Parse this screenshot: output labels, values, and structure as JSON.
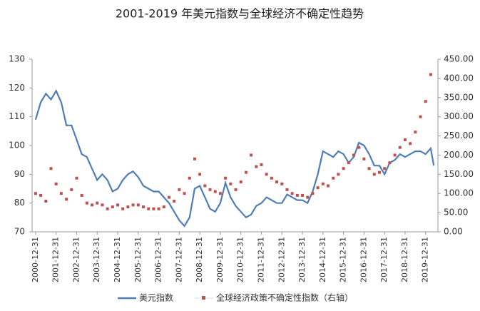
{
  "chart_data": {
    "type": "line",
    "title": "2001-2019 年美元指数与全球经济不确定性趋势",
    "xlim": [
      2000.83,
      2020.6
    ],
    "xticks": [
      {
        "value": 2001,
        "label": "2000-12-31"
      },
      {
        "value": 2002,
        "label": "2001-12-31"
      },
      {
        "value": 2003,
        "label": "2002-12-31"
      },
      {
        "value": 2004,
        "label": "2003-12-31"
      },
      {
        "value": 2005,
        "label": "2004-12-31"
      },
      {
        "value": 2006,
        "label": "2005-12-31"
      },
      {
        "value": 2007,
        "label": "2006-12-31"
      },
      {
        "value": 2008,
        "label": "2007-12-31"
      },
      {
        "value": 2009,
        "label": "2008-12-31"
      },
      {
        "value": 2010,
        "label": "2009-12-31"
      },
      {
        "value": 2011,
        "label": "2010-12-31"
      },
      {
        "value": 2012,
        "label": "2011-12-31"
      },
      {
        "value": 2013,
        "label": "2012-12-31"
      },
      {
        "value": 2014,
        "label": "2013-12-31"
      },
      {
        "value": 2015,
        "label": "2014-12-31"
      },
      {
        "value": 2016,
        "label": "2015-12-31"
      },
      {
        "value": 2017,
        "label": "2016-12-31"
      },
      {
        "value": 2018,
        "label": "2017-12-31"
      },
      {
        "value": 2019,
        "label": "2018-12-31"
      },
      {
        "value": 2020,
        "label": "2019-12-31"
      }
    ],
    "ylim": [
      70,
      130
    ],
    "yticks": [
      70,
      80,
      90,
      100,
      110,
      120,
      130
    ],
    "y2lim": [
      0,
      450
    ],
    "y2ticks": [
      {
        "value": 0,
        "label": "0.00"
      },
      {
        "value": 50,
        "label": "50.00"
      },
      {
        "value": 100,
        "label": "100.00"
      },
      {
        "value": 150,
        "label": "150.00"
      },
      {
        "value": 200,
        "label": "200.00"
      },
      {
        "value": 250,
        "label": "250.00"
      },
      {
        "value": 300,
        "label": "300.00"
      },
      {
        "value": 350,
        "label": "350.00"
      },
      {
        "value": 400,
        "label": "400.00"
      },
      {
        "value": 450,
        "label": "450.00"
      }
    ],
    "series": [
      {
        "name": "美元指数",
        "type": "line",
        "color": "#4f7db8",
        "x": [
          2001,
          2001.25,
          2001.5,
          2001.75,
          2002,
          2002.25,
          2002.5,
          2002.75,
          2003,
          2003.25,
          2003.5,
          2003.75,
          2004,
          2004.25,
          2004.5,
          2004.75,
          2005,
          2005.25,
          2005.5,
          2005.75,
          2006,
          2006.25,
          2006.5,
          2006.75,
          2007,
          2007.25,
          2007.5,
          2007.75,
          2008,
          2008.25,
          2008.5,
          2008.75,
          2009,
          2009.25,
          2009.5,
          2009.75,
          2010,
          2010.25,
          2010.5,
          2010.75,
          2011,
          2011.25,
          2011.5,
          2011.75,
          2012,
          2012.25,
          2012.5,
          2012.75,
          2013,
          2013.25,
          2013.5,
          2013.75,
          2014,
          2014.25,
          2014.5,
          2014.75,
          2015,
          2015.25,
          2015.5,
          2015.75,
          2016,
          2016.25,
          2016.5,
          2016.75,
          2017,
          2017.25,
          2017.5,
          2017.75,
          2018,
          2018.25,
          2018.5,
          2018.75,
          2019,
          2019.25,
          2019.5,
          2019.75,
          2020,
          2020.25,
          2020.4
        ],
        "values": [
          109,
          115,
          118,
          116,
          119,
          115,
          107,
          107,
          102,
          97,
          96,
          92,
          88,
          90,
          88,
          84,
          85,
          88,
          90,
          91,
          89,
          86,
          85,
          84,
          84,
          82,
          80,
          77,
          74,
          72,
          75,
          85,
          86,
          82,
          78,
          77,
          80,
          87,
          82,
          79,
          77,
          75,
          76,
          79,
          80,
          82,
          81,
          80,
          80,
          83,
          82,
          81,
          81,
          80,
          84,
          90,
          98,
          97,
          96,
          98,
          97,
          94,
          96,
          101,
          100,
          97,
          93,
          93,
          90,
          94,
          95,
          97,
          96,
          97,
          98,
          98,
          97,
          99,
          93
        ]
      },
      {
        "name": "全球经济政策不确定性指数（右轴）",
        "type": "scatter",
        "axis": "y2",
        "color": "#c0504d",
        "x": [
          2001,
          2001.25,
          2001.5,
          2001.75,
          2002,
          2002.25,
          2002.5,
          2002.75,
          2003,
          2003.25,
          2003.5,
          2003.75,
          2004,
          2004.25,
          2004.5,
          2004.75,
          2005,
          2005.25,
          2005.5,
          2005.75,
          2006,
          2006.25,
          2006.5,
          2006.75,
          2007,
          2007.25,
          2007.5,
          2007.75,
          2008,
          2008.25,
          2008.5,
          2008.75,
          2009,
          2009.25,
          2009.5,
          2009.75,
          2010,
          2010.25,
          2010.5,
          2010.75,
          2011,
          2011.25,
          2011.5,
          2011.75,
          2012,
          2012.25,
          2012.5,
          2012.75,
          2013,
          2013.25,
          2013.5,
          2013.75,
          2014,
          2014.25,
          2014.5,
          2014.75,
          2015,
          2015.25,
          2015.5,
          2015.75,
          2016,
          2016.25,
          2016.5,
          2016.75,
          2017,
          2017.25,
          2017.5,
          2017.75,
          2018,
          2018.25,
          2018.5,
          2018.75,
          2019,
          2019.25,
          2019.5,
          2019.75,
          2020,
          2020.25
        ],
        "values": [
          100,
          95,
          80,
          165,
          125,
          100,
          85,
          110,
          140,
          95,
          75,
          70,
          75,
          70,
          60,
          65,
          70,
          60,
          65,
          70,
          70,
          65,
          60,
          60,
          60,
          65,
          90,
          80,
          110,
          100,
          140,
          190,
          150,
          120,
          110,
          105,
          100,
          140,
          125,
          110,
          130,
          155,
          200,
          170,
          175,
          150,
          140,
          130,
          125,
          110,
          100,
          95,
          95,
          90,
          100,
          115,
          125,
          120,
          140,
          150,
          165,
          180,
          200,
          220,
          190,
          165,
          150,
          155,
          165,
          180,
          200,
          220,
          240,
          230,
          260,
          300,
          340,
          410
        ]
      }
    ]
  }
}
